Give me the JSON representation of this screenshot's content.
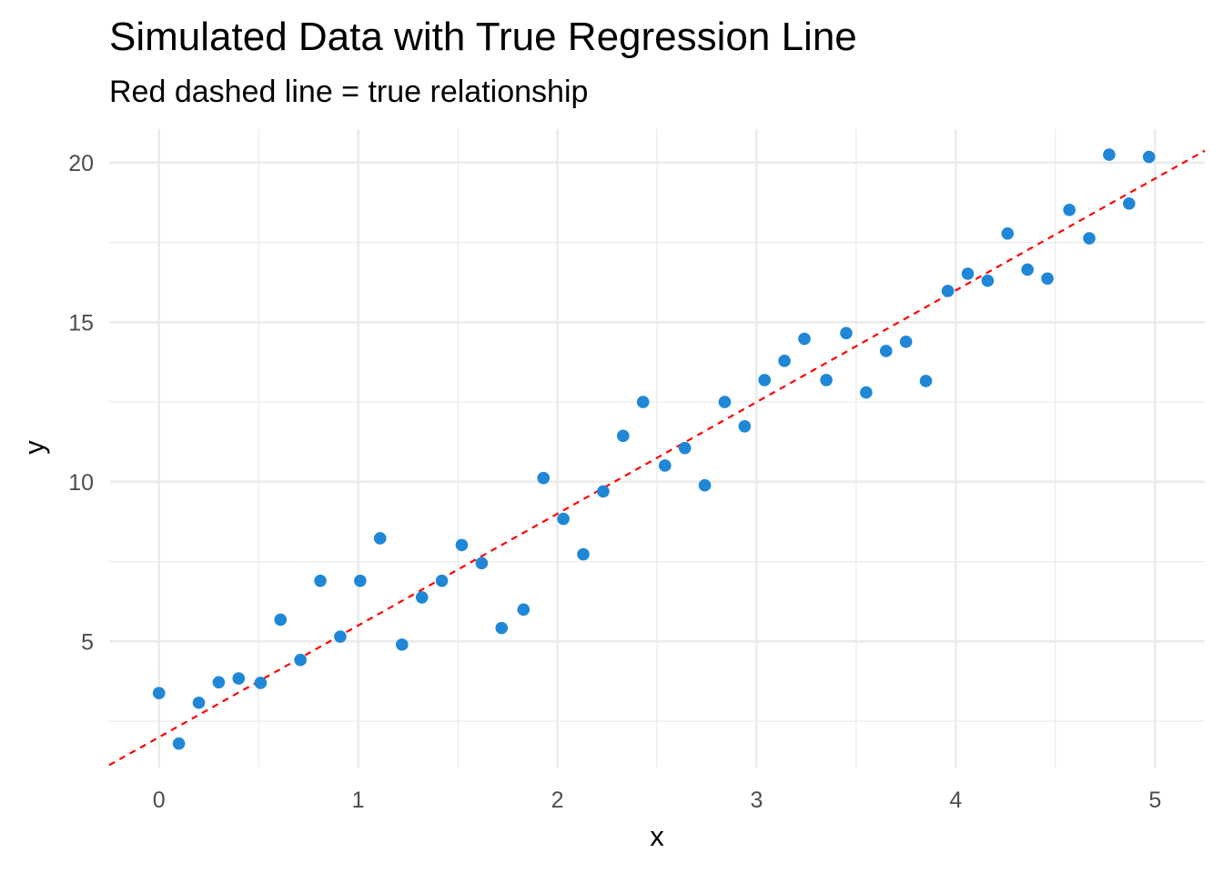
{
  "chart_data": {
    "type": "scatter",
    "title": "Simulated Data with True Regression Line",
    "subtitle": "Red dashed line = true relationship",
    "xlabel": "x",
    "ylabel": "y",
    "xlim": [
      -0.25,
      5.25
    ],
    "ylim": [
      1.05,
      21.05
    ],
    "x_ticks": [
      0,
      1,
      2,
      3,
      4,
      5
    ],
    "y_ticks": [
      5,
      10,
      15,
      20
    ],
    "x_tick_labels": [
      "0",
      "1",
      "2",
      "3",
      "4",
      "5"
    ],
    "y_tick_labels": [
      "5",
      "10",
      "15",
      "20"
    ],
    "grid": true,
    "point_color": "#1f87d6",
    "line_color": "#ff0000",
    "true_line": {
      "intercept": 2,
      "slope": 3.5,
      "style": "dashed"
    },
    "points": {
      "x": [
        0,
        0.1,
        0.2,
        0.3,
        0.4,
        0.51,
        0.61,
        0.71,
        0.81,
        0.91,
        1.01,
        1.11,
        1.22,
        1.32,
        1.42,
        1.52,
        1.62,
        1.72,
        1.83,
        1.93,
        2.03,
        2.13,
        2.23,
        2.33,
        2.43,
        2.54,
        2.64,
        2.74,
        2.84,
        2.94,
        3.04,
        3.14,
        3.24,
        3.35,
        3.45,
        3.55,
        3.65,
        3.75,
        3.85,
        3.96,
        4.06,
        4.16,
        4.26,
        4.36,
        4.46,
        4.57,
        4.67,
        4.77,
        4.87,
        4.97
      ],
      "y": [
        3.38,
        1.8,
        3.08,
        3.72,
        3.84,
        3.7,
        5.68,
        4.42,
        6.9,
        5.15,
        6.9,
        8.23,
        4.9,
        6.38,
        6.9,
        8.02,
        7.45,
        5.42,
        6.0,
        10.12,
        8.84,
        7.73,
        9.7,
        11.44,
        12.5,
        10.51,
        11.06,
        9.89,
        12.5,
        11.74,
        13.19,
        13.79,
        14.48,
        13.19,
        14.66,
        12.8,
        14.1,
        14.39,
        13.16,
        15.98,
        16.52,
        16.3,
        17.78,
        16.65,
        16.37,
        18.52,
        17.63,
        20.25,
        18.72,
        20.18
      ]
    }
  }
}
